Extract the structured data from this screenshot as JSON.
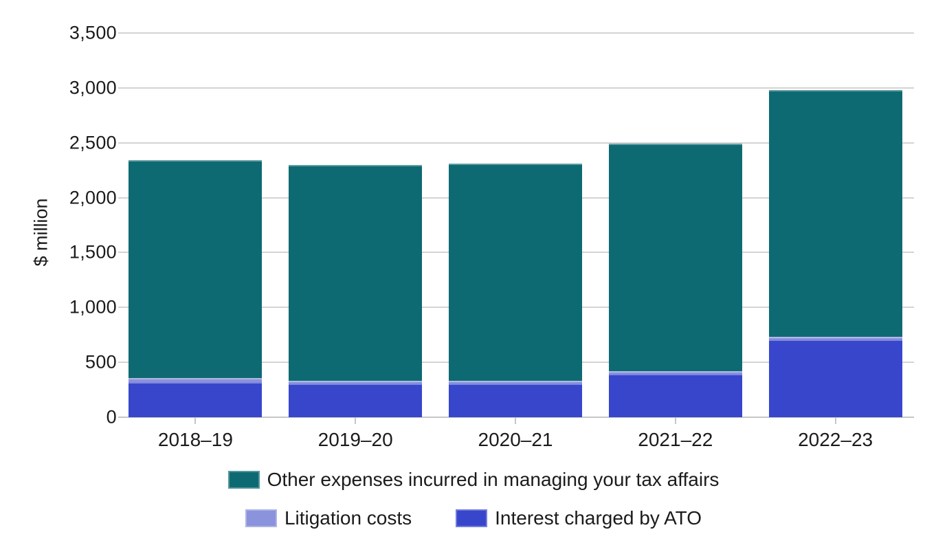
{
  "chart_data": {
    "type": "bar",
    "stacked": true,
    "title": "",
    "xlabel": "",
    "ylabel": "$ million",
    "categories": [
      "2018–19",
      "2019–20",
      "2020–21",
      "2021–22",
      "2022–23"
    ],
    "series": [
      {
        "name": "Interest charged by ATO",
        "color": "#3846CC",
        "values": [
          320,
          305,
          305,
          395,
          705
        ]
      },
      {
        "name": "Litigation costs",
        "color": "#8B93DC",
        "values": [
          35,
          25,
          25,
          25,
          30
        ]
      },
      {
        "name": "Other expenses incurred in managing your tax affairs",
        "color": "#0E6A72",
        "values": [
          1990,
          1970,
          1980,
          2070,
          2245
        ]
      }
    ],
    "ylim": [
      0,
      3500
    ],
    "yticks": [
      {
        "value": 0,
        "label": "0"
      },
      {
        "value": 500,
        "label": "500"
      },
      {
        "value": 1000,
        "label": "1,000"
      },
      {
        "value": 1500,
        "label": "1,500"
      },
      {
        "value": 2000,
        "label": "2,000"
      },
      {
        "value": 2500,
        "label": "2,500"
      },
      {
        "value": 3000,
        "label": "3,000"
      },
      {
        "value": 3500,
        "label": "3,500"
      }
    ],
    "grid": "horizontal",
    "legend_position": "bottom"
  }
}
